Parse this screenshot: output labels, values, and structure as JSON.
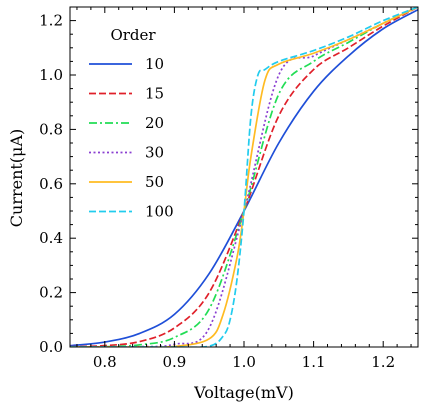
{
  "chart_data": {
    "type": "line",
    "xlabel": "Voltage(mV)",
    "ylabel": "Current(μA)",
    "xlim": [
      0.75,
      1.25
    ],
    "ylim": [
      0.0,
      1.25
    ],
    "xticks": [
      0.8,
      0.9,
      1.0,
      1.1,
      1.2
    ],
    "xtick_labels": [
      "0.8",
      "0.9",
      "1.0",
      "1.1",
      "1.2"
    ],
    "yticks": [
      0.0,
      0.2,
      0.4,
      0.6,
      0.8,
      1.0,
      1.2
    ],
    "ytick_labels": [
      "0.0",
      "0.2",
      "0.4",
      "0.6",
      "0.8",
      "1.0",
      "1.2"
    ],
    "grid": false,
    "legend": {
      "title": "Order",
      "placement": "top-left"
    },
    "series": [
      {
        "name": "10",
        "color": "#1f4fd8",
        "dash": "solid",
        "x": [
          0.75,
          0.8,
          0.85,
          0.9,
          0.95,
          1.0,
          1.05,
          1.1,
          1.15,
          1.2,
          1.25
        ],
        "y": [
          0.005,
          0.018,
          0.05,
          0.12,
          0.27,
          0.5,
          0.75,
          0.94,
          1.07,
          1.17,
          1.24
        ]
      },
      {
        "name": "15",
        "color": "#e0202a",
        "dash": "dashed",
        "x": [
          0.75,
          0.8,
          0.85,
          0.9,
          0.95,
          1.0,
          1.05,
          1.1,
          1.15,
          1.2,
          1.25
        ],
        "y": [
          0.001,
          0.005,
          0.02,
          0.07,
          0.2,
          0.5,
          0.85,
          1.02,
          1.1,
          1.18,
          1.25
        ]
      },
      {
        "name": "20",
        "color": "#22dd55",
        "dash": "dashdot",
        "x": [
          0.75,
          0.8,
          0.85,
          0.9,
          0.95,
          1.0,
          1.05,
          1.1,
          1.15,
          1.2,
          1.25
        ],
        "y": [
          0.0,
          0.001,
          0.008,
          0.035,
          0.14,
          0.5,
          0.93,
          1.05,
          1.12,
          1.19,
          1.25
        ]
      },
      {
        "name": "30",
        "color": "#8a3fd1",
        "dash": "dotted",
        "x": [
          0.75,
          0.8,
          0.85,
          0.9,
          0.95,
          1.0,
          1.05,
          1.1,
          1.15,
          1.2,
          1.25
        ],
        "y": [
          0.0,
          0.0,
          0.001,
          0.01,
          0.07,
          0.5,
          1.0,
          1.07,
          1.13,
          1.19,
          1.25
        ]
      },
      {
        "name": "50",
        "color": "#ffbb22",
        "dash": "solid",
        "x": [
          0.75,
          0.8,
          0.85,
          0.9,
          0.95,
          0.97,
          0.99,
          1.0,
          1.01,
          1.03,
          1.05,
          1.1,
          1.15,
          1.2,
          1.25
        ],
        "y": [
          0.0,
          0.0,
          0.0,
          0.002,
          0.03,
          0.12,
          0.33,
          0.5,
          0.7,
          0.98,
          1.04,
          1.08,
          1.13,
          1.19,
          1.25
        ]
      },
      {
        "name": "100",
        "color": "#22ccee",
        "dash": "dashed",
        "x": [
          0.75,
          0.8,
          0.85,
          0.9,
          0.95,
          0.97,
          0.98,
          0.99,
          1.0,
          1.01,
          1.02,
          1.03,
          1.05,
          1.1,
          1.15,
          1.2,
          1.25
        ],
        "y": [
          0.0,
          0.0,
          0.0,
          0.0,
          0.003,
          0.04,
          0.1,
          0.25,
          0.5,
          0.85,
          1.0,
          1.02,
          1.05,
          1.09,
          1.14,
          1.2,
          1.25
        ]
      }
    ]
  }
}
